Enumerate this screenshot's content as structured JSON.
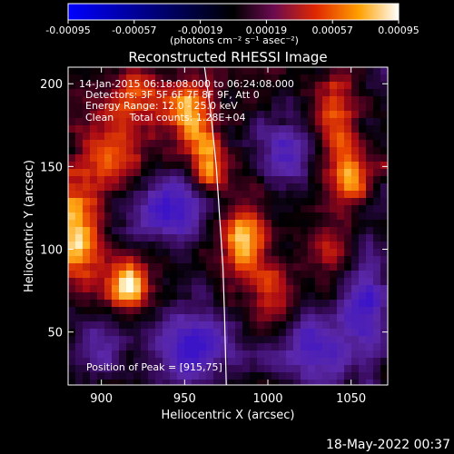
{
  "chart_data": {
    "type": "heatmap",
    "title": "Reconstructed RHESSI Image",
    "xlabel": "Heliocentric X (arcsec)",
    "ylabel": "Heliocentric Y (arcsec)",
    "xlim": [
      880,
      1072
    ],
    "ylim": [
      18,
      210
    ],
    "xticks": [
      "900",
      "950",
      "1000",
      "1050"
    ],
    "xtick_values": [
      900,
      950,
      1000,
      1050
    ],
    "yticks": [
      "50",
      "100",
      "150",
      "200"
    ],
    "ytick_values": [
      50,
      100,
      150,
      200
    ],
    "colorbar": {
      "min": -0.00095,
      "max": 0.00095,
      "ticks": [
        "-0.00095",
        "-0.00057",
        "-0.00019",
        "0.00019",
        "0.00057",
        "0.00095"
      ],
      "tick_values": [
        -0.00095,
        -0.00057,
        -0.00019,
        0.00019,
        0.00057,
        0.00095
      ],
      "units": "(photons cm⁻² s⁻¹ asec⁻²)"
    },
    "annotations": [
      "14-Jan-2015 06:18:08.000 to 06:24:08.000",
      "Detectors: 3F 5F 6F 7F 8F 9F, Att 0",
      "Energy Range: 12.0 - 25.0 keV",
      "Clean     Total counts: 1.28E+04"
    ],
    "peak_label": "Position of Peak = [915,75]",
    "peak": [
      915,
      75
    ],
    "limb_points": [
      [
        962,
        210
      ],
      [
        966,
        180
      ],
      [
        969,
        150
      ],
      [
        971,
        120
      ],
      [
        973,
        90
      ],
      [
        974,
        60
      ],
      [
        975,
        18
      ]
    ],
    "blobs": [
      {
        "x": 885,
        "y": 110,
        "sx": 10,
        "sy": 22,
        "a": 1.0
      },
      {
        "x": 915,
        "y": 77,
        "sx": 9,
        "sy": 12,
        "a": 1.05
      },
      {
        "x": 905,
        "y": 150,
        "sx": 14,
        "sy": 16,
        "a": 0.7
      },
      {
        "x": 920,
        "y": 190,
        "sx": 18,
        "sy": 12,
        "a": 0.55
      },
      {
        "x": 955,
        "y": 185,
        "sx": 9,
        "sy": 14,
        "a": 0.85
      },
      {
        "x": 965,
        "y": 150,
        "sx": 8,
        "sy": 14,
        "a": 0.9
      },
      {
        "x": 985,
        "y": 110,
        "sx": 10,
        "sy": 18,
        "a": 0.95
      },
      {
        "x": 1005,
        "y": 70,
        "sx": 10,
        "sy": 16,
        "a": 0.55
      },
      {
        "x": 1040,
        "y": 175,
        "sx": 10,
        "sy": 20,
        "a": 0.7
      },
      {
        "x": 1050,
        "y": 140,
        "sx": 9,
        "sy": 12,
        "a": 0.6
      },
      {
        "x": 1035,
        "y": 100,
        "sx": 10,
        "sy": 10,
        "a": 0.45
      },
      {
        "x": 940,
        "y": 125,
        "sx": 22,
        "sy": 14,
        "a": -0.9
      },
      {
        "x": 955,
        "y": 40,
        "sx": 16,
        "sy": 14,
        "a": -1.0
      },
      {
        "x": 1030,
        "y": 40,
        "sx": 22,
        "sy": 16,
        "a": -0.8
      },
      {
        "x": 900,
        "y": 45,
        "sx": 14,
        "sy": 12,
        "a": -0.6
      },
      {
        "x": 1060,
        "y": 70,
        "sx": 10,
        "sy": 20,
        "a": -0.7
      },
      {
        "x": 1010,
        "y": 160,
        "sx": 12,
        "sy": 16,
        "a": -0.7
      }
    ]
  },
  "footer": {
    "datestamp": "18-May-2022 00:37"
  }
}
